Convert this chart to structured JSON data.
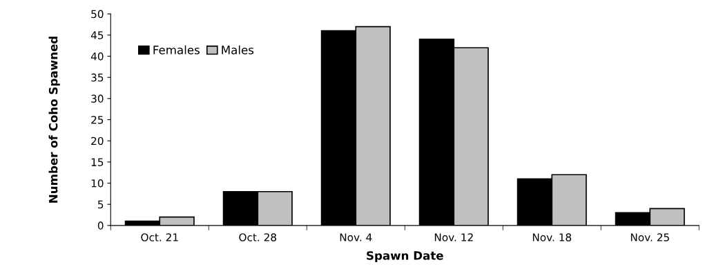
{
  "chart_data": {
    "type": "bar",
    "xlabel": "Spawn Date",
    "ylabel": "Number of Coho Spawned",
    "categories": [
      "Oct. 21",
      "Oct. 28",
      "Nov. 4",
      "Nov. 12",
      "Nov. 18",
      "Nov. 25"
    ],
    "series": [
      {
        "name": "Females",
        "color": "#000000",
        "values": [
          1,
          8,
          46,
          44,
          11,
          3
        ]
      },
      {
        "name": "Males",
        "color": "#c0c0c0",
        "values": [
          2,
          8,
          47,
          42,
          12,
          4
        ]
      }
    ],
    "ylim": [
      0,
      50
    ],
    "yticks": [
      0,
      5,
      10,
      15,
      20,
      25,
      30,
      35,
      40,
      45,
      50
    ],
    "grid": false,
    "legend": "top left"
  }
}
